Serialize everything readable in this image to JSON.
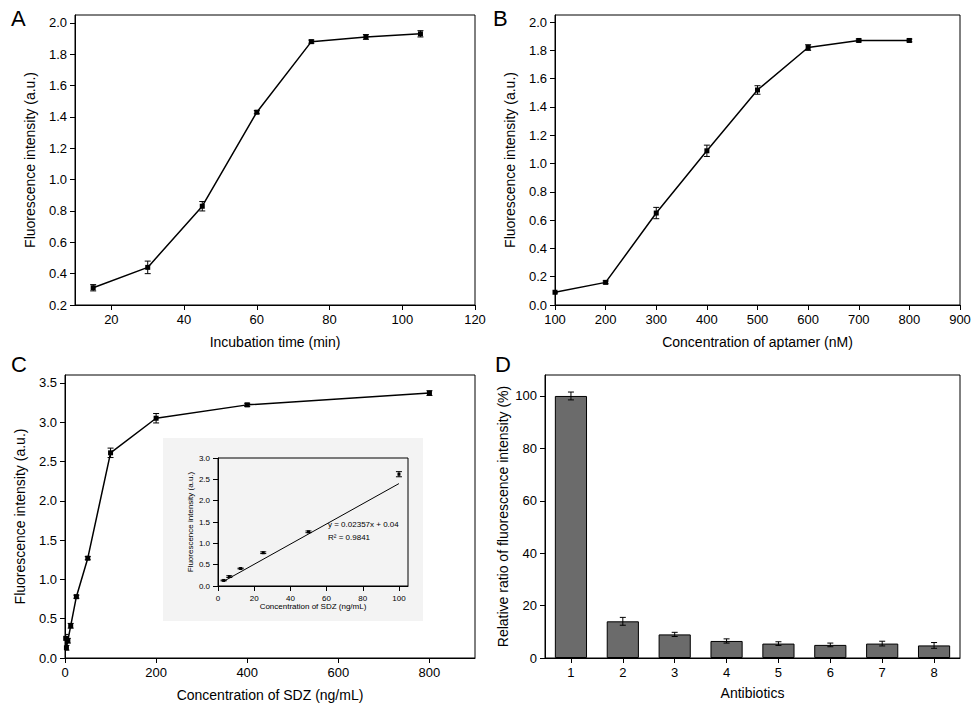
{
  "chart_data": [
    {
      "type": "line",
      "title": "A",
      "x_label": "Incubation time (min)",
      "y_label": "Fluorescence intensity (a.u.)",
      "x": [
        15,
        30,
        45,
        60,
        75,
        90,
        105
      ],
      "values": [
        0.31,
        0.44,
        0.83,
        1.43,
        1.88,
        1.91,
        1.93
      ],
      "errors": [
        0.02,
        0.04,
        0.03,
        0.01,
        0.01,
        0.015,
        0.02
      ],
      "color": "#000000",
      "marker": "square",
      "grid": false,
      "xlim": [
        10,
        120
      ],
      "xticks": [
        20,
        40,
        60,
        80,
        100,
        120
      ],
      "ylim": [
        0.2,
        2.05
      ],
      "yticks": [
        0.2,
        0.4,
        0.6,
        0.8,
        {
          "value": 1,
          "label": "1.0"
        },
        1.2,
        1.4,
        1.6,
        1.8,
        {
          "value": 2,
          "label": "2.0"
        }
      ]
    },
    {
      "type": "line",
      "title": "B",
      "x_label": "Concentration of aptamer (nM)",
      "y_label": "Fluorescence intensity (a.u.)",
      "x": [
        100,
        200,
        300,
        400,
        500,
        600,
        700,
        800
      ],
      "values": [
        0.09,
        0.16,
        0.65,
        1.09,
        1.52,
        1.82,
        1.87,
        1.87
      ],
      "errors": [
        0.005,
        0.01,
        0.04,
        0.04,
        0.03,
        0.02,
        0.01,
        0.01
      ],
      "color": "#000000",
      "marker": "square",
      "grid": false,
      "xlim": [
        100,
        900
      ],
      "xticks": [
        100,
        200,
        300,
        400,
        500,
        600,
        700,
        800,
        900
      ],
      "ylim": [
        0,
        2.05
      ],
      "yticks": [
        {
          "value": 0,
          "label": "0.0"
        },
        0.2,
        0.4,
        0.6,
        0.8,
        {
          "value": 1,
          "label": "1.0"
        },
        1.2,
        1.4,
        1.6,
        1.8,
        {
          "value": 2,
          "label": "2.0"
        }
      ]
    },
    {
      "type": "line",
      "title": "C",
      "x_label": "Concentration of SDZ (ng/mL)",
      "y_label": "Fluorescence intensity (a.u.)",
      "x": [
        1.5625,
        3.125,
        6.25,
        12.5,
        25,
        50,
        100,
        200,
        400,
        800
      ],
      "values": [
        0.25,
        0.13,
        0.22,
        0.41,
        0.78,
        1.27,
        2.61,
        3.05,
        3.22,
        3.37
      ],
      "errors": [
        0.05,
        0.03,
        0.03,
        0.03,
        0.02,
        0.02,
        0.06,
        0.06,
        0.02,
        0.03
      ],
      "color": "#000000",
      "marker": "square",
      "grid": false,
      "xlim": [
        0,
        900
      ],
      "xticks": [
        0,
        200,
        400,
        600,
        800
      ],
      "ylim": [
        0,
        3.6
      ],
      "yticks": [
        {
          "value": 0,
          "label": "0.0"
        },
        0.5,
        {
          "value": 1,
          "label": "1.0"
        },
        1.5,
        {
          "value": 2,
          "label": "2.0"
        },
        2.5,
        {
          "value": 3,
          "label": "3.0"
        },
        3.5
      ],
      "inset": {
        "type": "scatter",
        "x_label": "Concentration of SDZ (ng/mL)",
        "y_label": "Fluorescence intensity (a.u.)",
        "x": [
          3.125,
          6.25,
          12.5,
          25,
          50,
          100
        ],
        "values": [
          0.13,
          0.22,
          0.41,
          0.78,
          1.27,
          2.62
        ],
        "errors": [
          0.01,
          0.02,
          0.01,
          0.02,
          0.02,
          0.06
        ],
        "fit_line": {
          "x": [
            3.125,
            100
          ],
          "values": [
            0.11,
            2.4
          ]
        },
        "annotations": [
          "y = 0.02357x + 0.04",
          "R² = 0.9841"
        ],
        "color": "#000000",
        "marker": "square",
        "grid": false,
        "xlim": [
          0,
          105
        ],
        "xticks": [
          0,
          20,
          40,
          60,
          80,
          100
        ],
        "ylim": [
          0,
          3
        ],
        "yticks": [
          {
            "value": 0,
            "label": "0.0"
          },
          0.5,
          {
            "value": 1,
            "label": "1.0"
          },
          1.5,
          {
            "value": 2,
            "label": "2.0"
          },
          2.5,
          {
            "value": 3,
            "label": "3.0"
          }
        ]
      }
    },
    {
      "type": "bar",
      "title": "D",
      "x_label": "Antibiotics",
      "y_label": "Relative ratio of fluorescence intensity (%)",
      "categories": [
        "1",
        "2",
        "3",
        "4",
        "5",
        "6",
        "7",
        "8"
      ],
      "values": [
        100,
        14,
        9,
        6.5,
        5.5,
        5,
        5.5,
        4.8
      ],
      "errors": [
        1.5,
        1.5,
        0.8,
        0.8,
        0.7,
        0.7,
        0.9,
        1.1
      ],
      "color": "#6b6b6b",
      "grid": false,
      "ylim": [
        0,
        108
      ],
      "yticks": [
        0,
        20,
        40,
        60,
        80,
        100
      ]
    }
  ]
}
